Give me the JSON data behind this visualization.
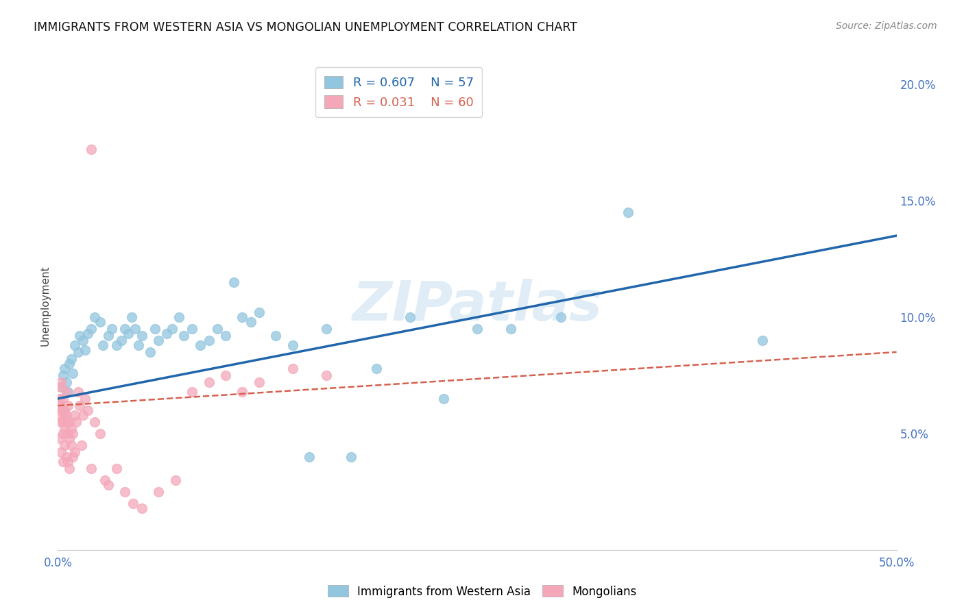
{
  "title": "IMMIGRANTS FROM WESTERN ASIA VS MONGOLIAN UNEMPLOYMENT CORRELATION CHART",
  "source": "Source: ZipAtlas.com",
  "ylabel": "Unemployment",
  "xlim": [
    0.0,
    0.5
  ],
  "ylim": [
    0.0,
    0.21
  ],
  "yticks_right": [
    0.05,
    0.1,
    0.15,
    0.2
  ],
  "ytick_labels_right": [
    "5.0%",
    "10.0%",
    "15.0%",
    "20.0%"
  ],
  "blue_color": "#92c5de",
  "pink_color": "#f4a7b9",
  "blue_line_color": "#2166ac",
  "pink_line_color": "#d6604d",
  "watermark_text": "ZIPatlas",
  "background_color": "#ffffff",
  "grid_color": "#dddddd",
  "blue_line_start_y": 0.065,
  "blue_line_end_y": 0.135,
  "pink_line_start_y": 0.062,
  "pink_line_end_y": 0.085,
  "blue_scatter_x": [
    0.002,
    0.003,
    0.004,
    0.005,
    0.006,
    0.007,
    0.008,
    0.009,
    0.01,
    0.012,
    0.013,
    0.015,
    0.016,
    0.018,
    0.02,
    0.022,
    0.025,
    0.027,
    0.03,
    0.032,
    0.035,
    0.038,
    0.04,
    0.042,
    0.044,
    0.046,
    0.048,
    0.05,
    0.055,
    0.058,
    0.06,
    0.065,
    0.068,
    0.072,
    0.075,
    0.08,
    0.085,
    0.09,
    0.095,
    0.1,
    0.105,
    0.11,
    0.115,
    0.12,
    0.13,
    0.14,
    0.15,
    0.16,
    0.175,
    0.19,
    0.21,
    0.23,
    0.25,
    0.27,
    0.3,
    0.34,
    0.42
  ],
  "blue_scatter_y": [
    0.07,
    0.075,
    0.078,
    0.072,
    0.068,
    0.08,
    0.082,
    0.076,
    0.088,
    0.085,
    0.092,
    0.09,
    0.086,
    0.093,
    0.095,
    0.1,
    0.098,
    0.088,
    0.092,
    0.095,
    0.088,
    0.09,
    0.095,
    0.093,
    0.1,
    0.095,
    0.088,
    0.092,
    0.085,
    0.095,
    0.09,
    0.093,
    0.095,
    0.1,
    0.092,
    0.095,
    0.088,
    0.09,
    0.095,
    0.092,
    0.115,
    0.1,
    0.098,
    0.102,
    0.092,
    0.088,
    0.04,
    0.095,
    0.04,
    0.078,
    0.1,
    0.065,
    0.095,
    0.095,
    0.1,
    0.145,
    0.09
  ],
  "pink_scatter_x": [
    0.001,
    0.001,
    0.001,
    0.001,
    0.002,
    0.002,
    0.002,
    0.002,
    0.002,
    0.003,
    0.003,
    0.003,
    0.003,
    0.003,
    0.004,
    0.004,
    0.004,
    0.004,
    0.005,
    0.005,
    0.005,
    0.005,
    0.006,
    0.006,
    0.006,
    0.007,
    0.007,
    0.007,
    0.008,
    0.008,
    0.009,
    0.009,
    0.01,
    0.01,
    0.011,
    0.012,
    0.013,
    0.014,
    0.015,
    0.016,
    0.018,
    0.02,
    0.022,
    0.025,
    0.028,
    0.03,
    0.035,
    0.04,
    0.045,
    0.05,
    0.06,
    0.07,
    0.08,
    0.09,
    0.1,
    0.11,
    0.12,
    0.14,
    0.16,
    0.02
  ],
  "pink_scatter_y": [
    0.065,
    0.058,
    0.062,
    0.048,
    0.07,
    0.072,
    0.055,
    0.06,
    0.042,
    0.055,
    0.06,
    0.065,
    0.05,
    0.038,
    0.058,
    0.06,
    0.052,
    0.045,
    0.068,
    0.055,
    0.058,
    0.04,
    0.062,
    0.05,
    0.038,
    0.055,
    0.048,
    0.035,
    0.052,
    0.045,
    0.05,
    0.04,
    0.058,
    0.042,
    0.055,
    0.068,
    0.062,
    0.045,
    0.058,
    0.065,
    0.06,
    0.035,
    0.055,
    0.05,
    0.03,
    0.028,
    0.035,
    0.025,
    0.02,
    0.018,
    0.025,
    0.03,
    0.068,
    0.072,
    0.075,
    0.068,
    0.072,
    0.078,
    0.075,
    0.172
  ]
}
